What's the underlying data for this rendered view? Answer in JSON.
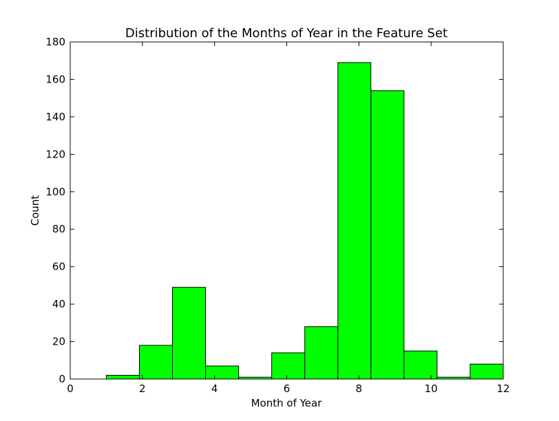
{
  "chart_data": {
    "type": "bar",
    "title": "Distribution of the Months of Year in the Feature Set",
    "xlabel": "Month of Year",
    "ylabel": "Count",
    "xlim": [
      0,
      12
    ],
    "ylim": [
      0,
      180
    ],
    "xticks": [
      "0",
      "2",
      "4",
      "6",
      "8",
      "10",
      "12"
    ],
    "yticks": [
      "0",
      "20",
      "40",
      "60",
      "80",
      "100",
      "120",
      "140",
      "160",
      "180"
    ],
    "bins": [
      {
        "x0": 1.0,
        "x1": 1.917,
        "value": 2
      },
      {
        "x0": 1.917,
        "x1": 2.833,
        "value": 18
      },
      {
        "x0": 2.833,
        "x1": 3.75,
        "value": 49
      },
      {
        "x0": 3.75,
        "x1": 4.667,
        "value": 7
      },
      {
        "x0": 4.667,
        "x1": 5.583,
        "value": 1
      },
      {
        "x0": 5.583,
        "x1": 6.5,
        "value": 14
      },
      {
        "x0": 6.5,
        "x1": 7.417,
        "value": 28
      },
      {
        "x0": 7.417,
        "x1": 8.333,
        "value": 169
      },
      {
        "x0": 8.333,
        "x1": 9.25,
        "value": 154
      },
      {
        "x0": 9.25,
        "x1": 10.167,
        "value": 15
      },
      {
        "x0": 10.167,
        "x1": 11.083,
        "value": 1
      },
      {
        "x0": 11.083,
        "x1": 12.0,
        "value": 8
      }
    ],
    "bar_color": "#00ff00",
    "edge_color": "#000000",
    "grid": false,
    "legend": "none"
  }
}
